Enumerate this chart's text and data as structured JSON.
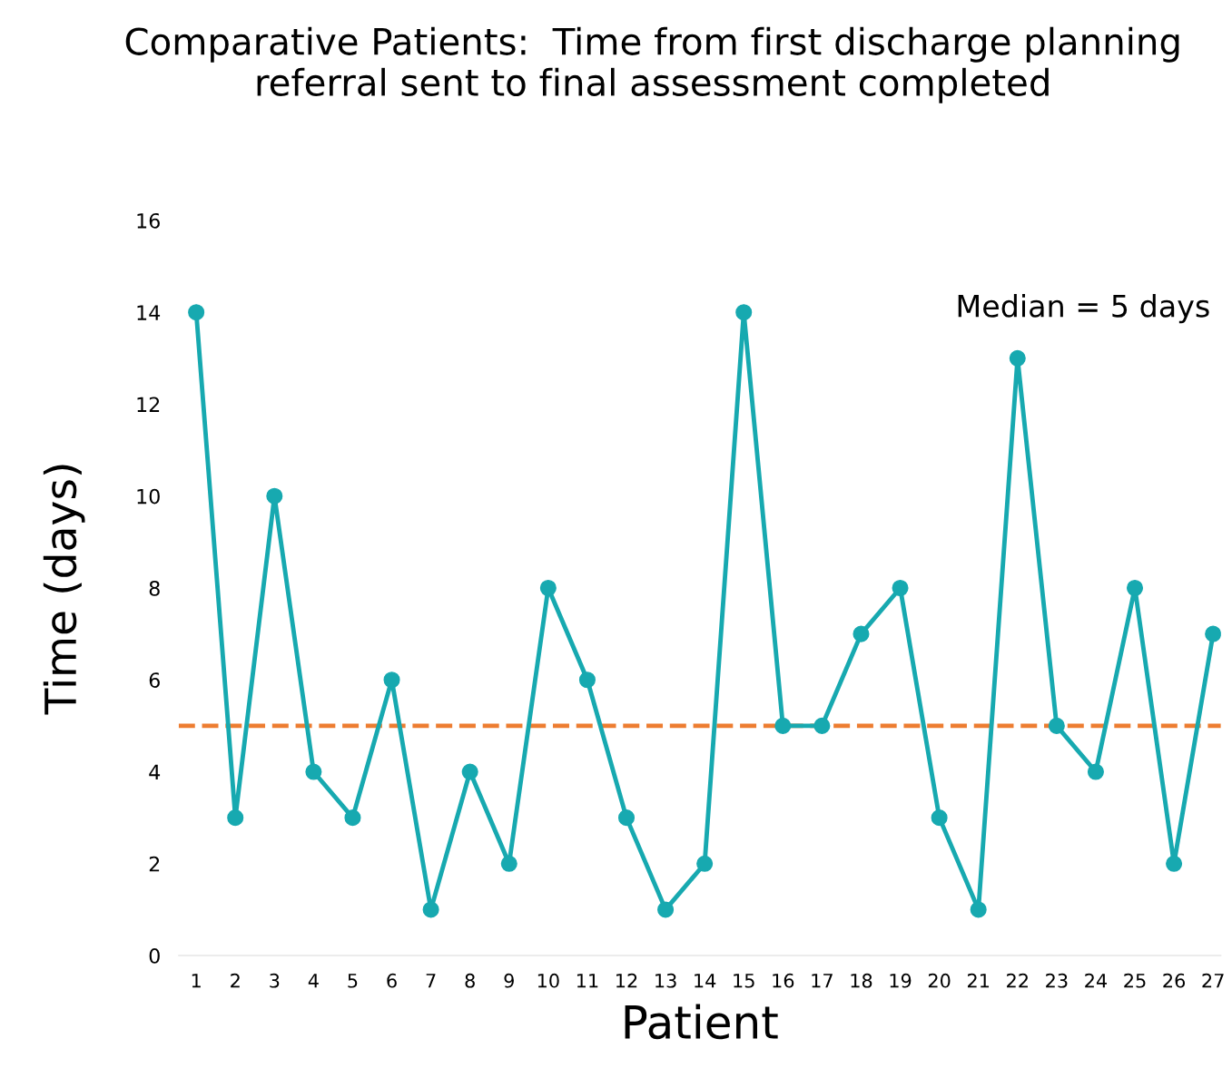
{
  "chart_data": {
    "type": "line",
    "title": "Comparative Patients:  Time from first discharge planning referral sent to final assessment completed",
    "xlabel": "Patient",
    "ylabel": "Time (days)",
    "categories": [
      "1",
      "2",
      "3",
      "4",
      "5",
      "6",
      "7",
      "8",
      "9",
      "10",
      "11",
      "12",
      "13",
      "14",
      "15",
      "16",
      "17",
      "18",
      "19",
      "20",
      "21",
      "22",
      "23",
      "24",
      "25",
      "26",
      "27"
    ],
    "series": [
      {
        "color": "#17a9b0",
        "values": [
          14,
          3,
          10,
          4,
          3,
          6,
          1,
          4,
          2,
          8,
          6,
          3,
          1,
          2,
          14,
          5,
          5,
          7,
          8,
          3,
          1,
          13,
          5,
          4,
          8,
          2,
          7
        ]
      }
    ],
    "ylim": [
      0,
      16
    ],
    "yticks": [
      0,
      2,
      4,
      6,
      8,
      10,
      12,
      14,
      16
    ],
    "ref_lines": [
      {
        "axis": "y",
        "value": 5,
        "color": "#ed7d31",
        "line_style": "dashed"
      }
    ],
    "annotations": [
      "Median = 5 days"
    ],
    "marker": "circle",
    "line_style": "solid",
    "grid": false,
    "legend": false
  }
}
